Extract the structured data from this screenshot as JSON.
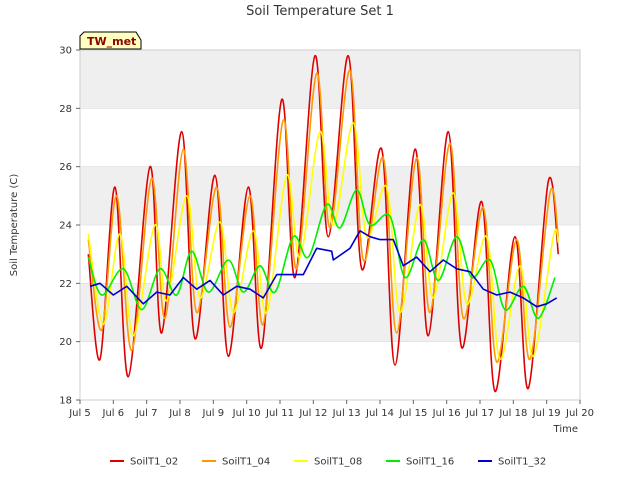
{
  "chart_data": {
    "type": "line",
    "title": "Soil Temperature Set 1",
    "xlabel": "Time",
    "ylabel": "Soil Temperature (C)",
    "badge": "TW_met",
    "xlim": [
      5,
      20
    ],
    "ylim": [
      18,
      30
    ],
    "x_ticks": [
      5,
      6,
      7,
      8,
      9,
      10,
      11,
      12,
      13,
      14,
      15,
      16,
      17,
      18,
      19,
      20
    ],
    "x_tick_labels": [
      "Jul 5",
      "Jul 6",
      "Jul 7",
      "Jul 8",
      "Jul 9",
      "Jul 10",
      "Jul 11",
      "Jul 12",
      "Jul 13",
      "Jul 14",
      "Jul 15",
      "Jul 16",
      "Jul 17",
      "Jul 18",
      "Jul 19",
      "Jul 20"
    ],
    "y_ticks": [
      18,
      20,
      22,
      24,
      26,
      28,
      30
    ],
    "y_tick_labels": [
      "18",
      "20",
      "22",
      "24",
      "26",
      "28",
      "30"
    ],
    "legend_position": "bottom",
    "colors": {
      "band": "#efefef",
      "grid": "#dcdcdc",
      "badge_bg": "#ffffc0"
    },
    "series": [
      {
        "name": "SoilT1_02",
        "color": "#dd0000",
        "x": [
          5.25,
          5.6,
          6.05,
          6.45,
          7.1,
          7.45,
          8.05,
          8.45,
          9.05,
          9.45,
          10.05,
          10.45,
          11.05,
          11.45,
          12.05,
          12.45,
          13.05,
          13.45,
          14.05,
          14.45,
          15.05,
          15.45,
          16.05,
          16.45,
          17.05,
          17.45,
          18.05,
          18.45,
          19.05,
          19.35
        ],
        "y": [
          23.0,
          19.4,
          25.3,
          18.8,
          26.0,
          20.3,
          27.2,
          20.1,
          25.7,
          19.5,
          25.3,
          19.8,
          28.3,
          22.2,
          29.8,
          23.6,
          29.8,
          22.5,
          26.6,
          19.2,
          26.6,
          20.2,
          27.2,
          19.8,
          24.8,
          18.3,
          23.6,
          18.4,
          25.5,
          23.0
        ]
      },
      {
        "name": "SoilT1_04",
        "color": "#ff9900",
        "x": [
          5.25,
          5.65,
          6.1,
          6.55,
          7.15,
          7.55,
          8.1,
          8.5,
          9.1,
          9.5,
          10.1,
          10.5,
          11.1,
          11.5,
          12.1,
          12.5,
          13.1,
          13.5,
          14.1,
          14.5,
          15.1,
          15.5,
          16.1,
          16.5,
          17.1,
          17.5,
          18.1,
          18.5,
          19.1,
          19.35
        ],
        "y": [
          23.5,
          20.4,
          25.0,
          19.7,
          25.6,
          20.8,
          26.6,
          21.0,
          25.3,
          20.5,
          25.0,
          20.6,
          27.6,
          22.5,
          29.2,
          23.9,
          29.3,
          22.8,
          26.3,
          20.3,
          26.3,
          21.0,
          26.8,
          20.8,
          24.6,
          19.3,
          23.5,
          19.4,
          25.1,
          23.6
        ]
      },
      {
        "name": "SoilT1_08",
        "color": "#ffff00",
        "x": [
          5.25,
          5.7,
          6.2,
          6.6,
          7.25,
          7.6,
          8.2,
          8.6,
          9.2,
          9.6,
          10.2,
          10.6,
          11.2,
          11.6,
          12.2,
          12.6,
          13.2,
          13.6,
          14.2,
          14.6,
          15.2,
          15.6,
          16.2,
          16.6,
          17.2,
          17.6,
          18.2,
          18.6,
          19.2,
          19.35
        ],
        "y": [
          23.7,
          20.6,
          23.7,
          20.2,
          24.0,
          21.4,
          25.0,
          21.5,
          24.1,
          21.0,
          23.8,
          21.0,
          25.7,
          22.9,
          27.2,
          24.0,
          27.5,
          23.6,
          25.3,
          21.0,
          24.7,
          21.5,
          25.1,
          21.3,
          23.6,
          19.4,
          22.6,
          19.5,
          23.6,
          23.4
        ]
      },
      {
        "name": "SoilT1_16",
        "color": "#00ee00",
        "x": [
          5.25,
          5.65,
          6.3,
          6.85,
          7.4,
          7.9,
          8.35,
          8.85,
          9.45,
          9.9,
          10.4,
          10.85,
          11.4,
          11.85,
          12.4,
          12.8,
          13.3,
          13.7,
          14.3,
          14.75,
          15.3,
          15.75,
          16.3,
          16.75,
          17.3,
          17.75,
          18.3,
          18.75,
          19.25
        ],
        "y": [
          22.9,
          21.6,
          22.5,
          21.1,
          22.5,
          21.6,
          23.1,
          21.7,
          22.8,
          21.7,
          22.6,
          21.7,
          23.6,
          22.9,
          24.7,
          23.9,
          25.2,
          24.0,
          24.3,
          22.2,
          23.5,
          22.1,
          23.6,
          22.2,
          22.8,
          21.1,
          21.9,
          20.8,
          22.2
        ]
      },
      {
        "name": "SoilT1_32",
        "color": "#0000cc",
        "x": [
          5.3,
          5.6,
          6.0,
          6.4,
          6.9,
          7.3,
          7.7,
          8.1,
          8.5,
          8.9,
          9.3,
          9.7,
          10.1,
          10.5,
          10.9,
          11.3,
          11.7,
          12.1,
          12.55,
          12.6,
          13.1,
          13.4,
          13.7,
          14.0,
          14.4,
          14.7,
          15.1,
          15.5,
          15.9,
          16.3,
          16.7,
          17.1,
          17.5,
          17.9,
          18.3,
          18.7,
          19.0,
          19.3
        ],
        "y": [
          21.9,
          22.0,
          21.6,
          21.9,
          21.3,
          21.7,
          21.6,
          22.2,
          21.8,
          22.1,
          21.6,
          21.9,
          21.8,
          21.5,
          22.3,
          22.3,
          22.3,
          23.2,
          23.1,
          22.8,
          23.2,
          23.8,
          23.6,
          23.5,
          23.5,
          22.6,
          22.9,
          22.4,
          22.8,
          22.5,
          22.4,
          21.8,
          21.6,
          21.7,
          21.5,
          21.2,
          21.3,
          21.5
        ]
      }
    ]
  }
}
